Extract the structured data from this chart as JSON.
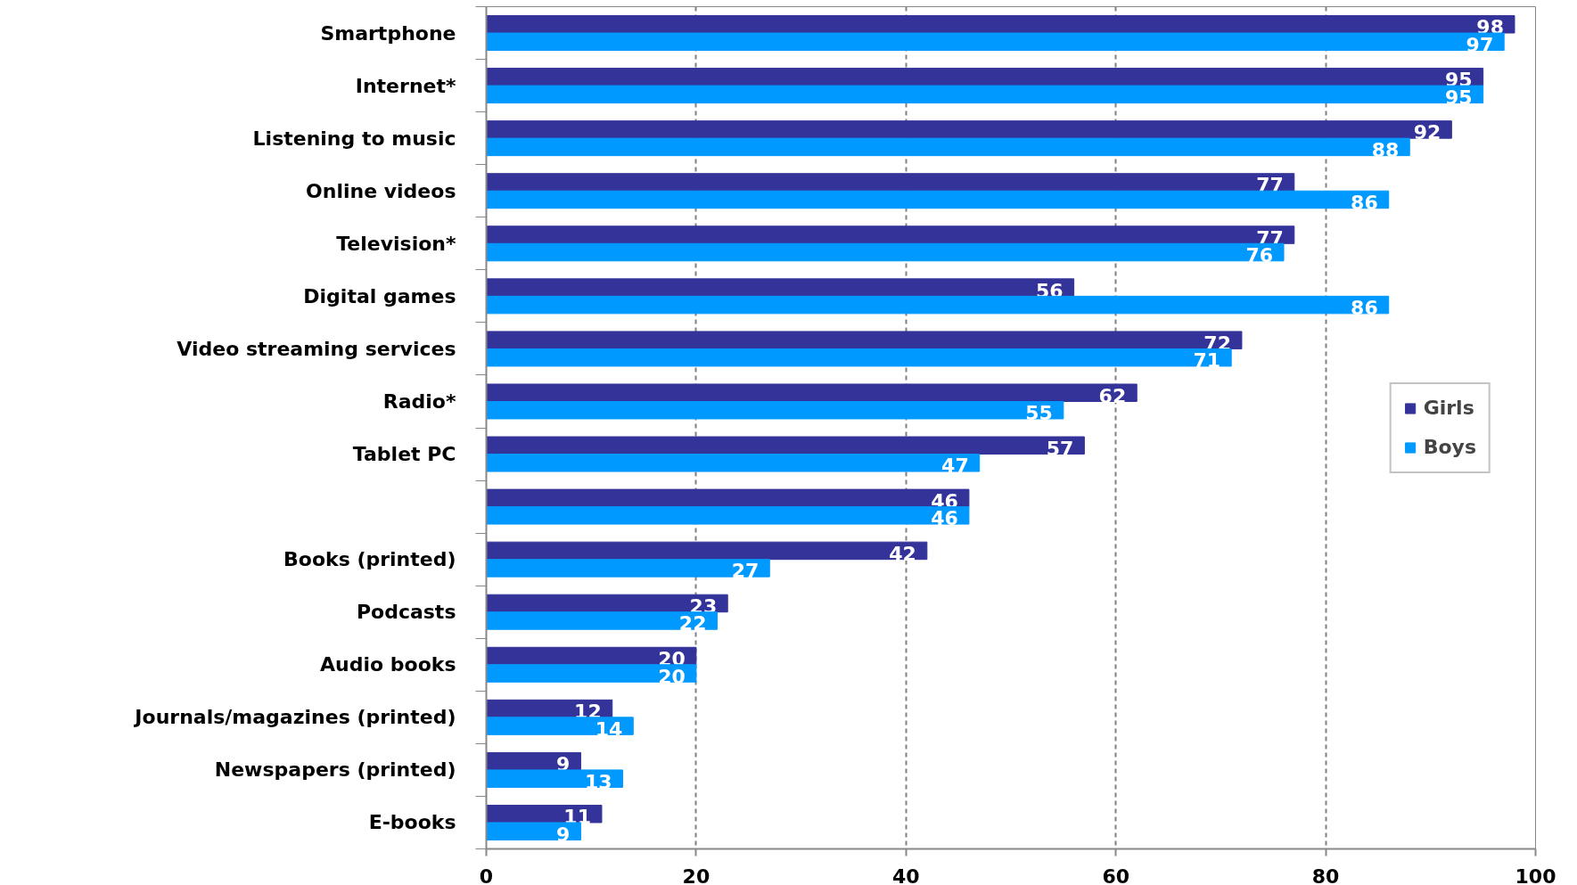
{
  "chart_data": {
    "type": "bar",
    "orientation": "horizontal",
    "categories": [
      "Smartphone",
      "Internet*",
      "Listening to music",
      "Online videos",
      "Television*",
      "Digital games",
      "Video streaming services",
      "Radio*",
      "Tablet PC",
      null,
      "Books (printed)",
      "Podcasts",
      "Audio books",
      "Journals/magazines (printed)",
      "Newspapers (printed)",
      "E-books"
    ],
    "series": [
      {
        "name": "Girls",
        "color": "#333399",
        "values": [
          98,
          95,
          92,
          77,
          77,
          56,
          72,
          62,
          57,
          46,
          42,
          23,
          20,
          12,
          9,
          11
        ]
      },
      {
        "name": "Boys",
        "color": "#0099ff",
        "values": [
          97,
          95,
          88,
          86,
          76,
          86,
          71,
          55,
          47,
          46,
          27,
          22,
          20,
          14,
          13,
          9
        ]
      }
    ],
    "xlim": [
      0,
      100
    ],
    "xticks": [
      0,
      20,
      40,
      60,
      80,
      100
    ],
    "grid": "x",
    "legend": "right",
    "data_labels": true
  }
}
